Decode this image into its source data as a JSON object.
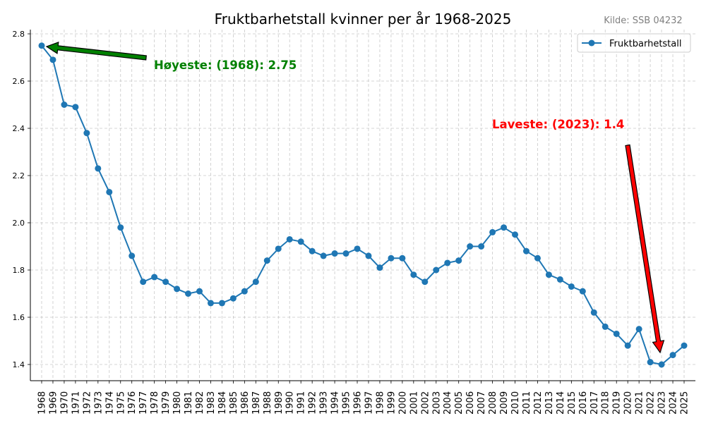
{
  "chart_data": {
    "type": "line",
    "title": "Fruktbarhetstall kvinner per år 1968-2025",
    "source_note": "Kilde: SSB 04232",
    "xlabel": "",
    "ylabel": "",
    "ylim": [
      1.33,
      2.82
    ],
    "yticks": [
      "1.4",
      "1.6",
      "1.8",
      "2.0",
      "2.2",
      "2.4",
      "2.6",
      "2.8"
    ],
    "grid": true,
    "legend_position": "upper right",
    "series": [
      {
        "name": "Fruktbarhetstall",
        "color": "#1f77b4",
        "marker": "circle",
        "x": [
          1968,
          1969,
          1970,
          1971,
          1972,
          1973,
          1974,
          1975,
          1976,
          1977,
          1978,
          1979,
          1980,
          1981,
          1982,
          1983,
          1984,
          1985,
          1986,
          1987,
          1988,
          1989,
          1990,
          1991,
          1992,
          1993,
          1994,
          1995,
          1996,
          1997,
          1998,
          1999,
          2000,
          2001,
          2002,
          2003,
          2004,
          2005,
          2006,
          2007,
          2008,
          2009,
          2010,
          2011,
          2012,
          2013,
          2014,
          2015,
          2016,
          2017,
          2018,
          2019,
          2020,
          2021,
          2022,
          2023,
          2024,
          2025
        ],
        "values": [
          2.75,
          2.69,
          2.5,
          2.49,
          2.38,
          2.23,
          2.13,
          1.98,
          1.86,
          1.75,
          1.77,
          1.75,
          1.72,
          1.7,
          1.71,
          1.66,
          1.66,
          1.68,
          1.71,
          1.75,
          1.84,
          1.89,
          1.93,
          1.92,
          1.88,
          1.86,
          1.87,
          1.87,
          1.89,
          1.86,
          1.81,
          1.85,
          1.85,
          1.78,
          1.75,
          1.8,
          1.83,
          1.84,
          1.9,
          1.9,
          1.96,
          1.98,
          1.95,
          1.88,
          1.85,
          1.78,
          1.76,
          1.73,
          1.71,
          1.62,
          1.56,
          1.53,
          1.48,
          1.55,
          1.41,
          1.4,
          1.44,
          1.48
        ]
      }
    ],
    "annotations": [
      {
        "id": "high",
        "text": "Høyeste: (1968): 2.75",
        "color": "#008000",
        "x": 1968,
        "y": 2.75
      },
      {
        "id": "low",
        "text": "Laveste: (2023): 1.4",
        "color": "#ff0000",
        "x": 2023,
        "y": 1.4
      }
    ]
  }
}
